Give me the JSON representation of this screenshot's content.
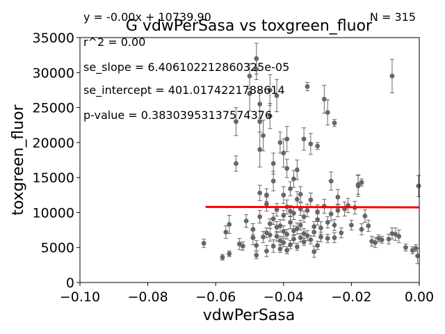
{
  "chart_data": {
    "type": "scatter",
    "title": "G vdwPerSasa vs toxgreen_fluor",
    "xlabel": "vdwPerSasa",
    "ylabel": "toxgreen_fluor",
    "xlim": [
      -0.1,
      0.0
    ],
    "ylim": [
      0,
      35000
    ],
    "xticks": [
      -0.1,
      -0.08,
      -0.06,
      -0.04,
      -0.02,
      0.0
    ],
    "xtick_labels": [
      "−0.10",
      "−0.08",
      "−0.06",
      "−0.04",
      "−0.02",
      "0.00"
    ],
    "yticks": [
      0,
      5000,
      10000,
      15000,
      20000,
      25000,
      30000,
      35000
    ],
    "ytick_labels": [
      "0",
      "5000",
      "10000",
      "15000",
      "20000",
      "25000",
      "30000",
      "35000"
    ],
    "grid": false,
    "annotations": {
      "equation": "y = -0.00x + 10739.90",
      "r2": "r^2 = 0.00",
      "se_slope": "se_slope = 6.406102212860325e-05",
      "se_intercept": "se_intercept = 401.0174221788614",
      "p_value": "p-value = 0.38303953137574376",
      "n": "N = 315"
    },
    "fit_line": {
      "x": [
        -0.063,
        0.0
      ],
      "y": [
        10800,
        10739.9
      ],
      "color": "#ff0000"
    },
    "point_color": "#666666",
    "points": [
      [
        -0.0635,
        5600,
        600
      ],
      [
        -0.058,
        3600,
        400
      ],
      [
        -0.057,
        7200,
        900
      ],
      [
        -0.056,
        4100,
        400
      ],
      [
        -0.056,
        8300,
        1300
      ],
      [
        -0.054,
        23000,
        2000
      ],
      [
        -0.054,
        17000,
        1100
      ],
      [
        -0.053,
        5500,
        800
      ],
      [
        -0.052,
        5200,
        600
      ],
      [
        -0.051,
        8800,
        900
      ],
      [
        -0.05,
        27000,
        2500
      ],
      [
        -0.05,
        29500,
        1800
      ],
      [
        -0.049,
        6400,
        1000
      ],
      [
        -0.049,
        7600,
        800
      ],
      [
        -0.048,
        3900,
        500
      ],
      [
        -0.048,
        5300,
        700
      ],
      [
        -0.048,
        32000,
        2200
      ],
      [
        -0.048,
        30500,
        1500
      ],
      [
        -0.047,
        25500,
        2000
      ],
      [
        -0.047,
        23000,
        1500
      ],
      [
        -0.047,
        19000,
        2500
      ],
      [
        -0.047,
        12800,
        1100
      ],
      [
        -0.047,
        9400,
        900
      ],
      [
        -0.046,
        6500,
        800
      ],
      [
        -0.046,
        21000,
        2200
      ],
      [
        -0.045,
        11200,
        1000
      ],
      [
        -0.045,
        12500,
        900
      ],
      [
        -0.045,
        7100,
        700
      ],
      [
        -0.045,
        4500,
        800
      ],
      [
        -0.044,
        6800,
        900
      ],
      [
        -0.044,
        8400,
        700
      ],
      [
        -0.044,
        27500,
        2200
      ],
      [
        -0.044,
        23800,
        1800
      ],
      [
        -0.043,
        14500,
        1400
      ],
      [
        -0.043,
        9100,
        800
      ],
      [
        -0.043,
        5200,
        900
      ],
      [
        -0.043,
        17000,
        1500
      ],
      [
        -0.042,
        6600,
        700
      ],
      [
        -0.042,
        7900,
        800
      ],
      [
        -0.042,
        10400,
        900
      ],
      [
        -0.042,
        26700,
        2300
      ],
      [
        -0.041,
        8100,
        900
      ],
      [
        -0.041,
        6000,
        600
      ],
      [
        -0.041,
        4800,
        500
      ],
      [
        -0.041,
        20000,
        1500
      ],
      [
        -0.04,
        18500,
        2000
      ],
      [
        -0.04,
        9600,
        700
      ],
      [
        -0.04,
        5700,
        600
      ],
      [
        -0.04,
        7300,
        800
      ],
      [
        -0.04,
        12500,
        1200
      ],
      [
        -0.039,
        10800,
        1000
      ],
      [
        -0.039,
        6900,
        700
      ],
      [
        -0.039,
        4600,
        500
      ],
      [
        -0.039,
        20500,
        1800
      ],
      [
        -0.039,
        16300,
        1300
      ],
      [
        -0.038,
        5400,
        600
      ],
      [
        -0.038,
        8600,
        900
      ],
      [
        -0.038,
        13400,
        1000
      ],
      [
        -0.038,
        10200,
        800
      ],
      [
        -0.037,
        7400,
        700
      ],
      [
        -0.037,
        6200,
        600
      ],
      [
        -0.037,
        14800,
        1200
      ],
      [
        -0.037,
        9900,
        900
      ],
      [
        -0.036,
        5100,
        500
      ],
      [
        -0.036,
        7700,
        800
      ],
      [
        -0.036,
        11900,
        1100
      ],
      [
        -0.036,
        16100,
        1400
      ],
      [
        -0.035,
        6400,
        600
      ],
      [
        -0.035,
        8200,
        700
      ],
      [
        -0.035,
        12600,
        1100
      ],
      [
        -0.035,
        10500,
        900
      ],
      [
        -0.034,
        7000,
        700
      ],
      [
        -0.034,
        5800,
        500
      ],
      [
        -0.034,
        20500,
        1600
      ],
      [
        -0.034,
        9400,
        800
      ],
      [
        -0.033,
        28000,
        600
      ],
      [
        -0.033,
        6700,
        700
      ],
      [
        -0.033,
        10300,
        900
      ],
      [
        -0.032,
        19800,
        1500
      ],
      [
        -0.032,
        11800,
        1000
      ],
      [
        -0.032,
        6100,
        600
      ],
      [
        -0.031,
        4400,
        800
      ],
      [
        -0.031,
        8000,
        700
      ],
      [
        -0.031,
        7200,
        600
      ],
      [
        -0.03,
        10100,
        1000
      ],
      [
        -0.03,
        5300,
        600
      ],
      [
        -0.03,
        19500,
        500
      ],
      [
        -0.03,
        9000,
        800
      ],
      [
        -0.029,
        7800,
        900
      ],
      [
        -0.029,
        6500,
        700
      ],
      [
        -0.028,
        10900,
        1000
      ],
      [
        -0.028,
        26200,
        2000
      ],
      [
        -0.027,
        24300,
        1800
      ],
      [
        -0.027,
        8600,
        800
      ],
      [
        -0.027,
        6300,
        600
      ],
      [
        -0.026,
        14500,
        1300
      ],
      [
        -0.026,
        9800,
        1000
      ],
      [
        -0.025,
        22800,
        500
      ],
      [
        -0.025,
        8200,
        800
      ],
      [
        -0.025,
        6400,
        700
      ],
      [
        -0.024,
        10300,
        900
      ],
      [
        -0.024,
        12200,
        1100
      ],
      [
        -0.023,
        7100,
        700
      ],
      [
        -0.022,
        10500,
        1000
      ],
      [
        -0.021,
        11000,
        1000
      ],
      [
        -0.02,
        8200,
        700
      ],
      [
        -0.019,
        10700,
        900
      ],
      [
        -0.018,
        13800,
        1500
      ],
      [
        -0.018,
        14000,
        1400
      ],
      [
        -0.017,
        7600,
        800
      ],
      [
        -0.017,
        14300,
        500
      ],
      [
        -0.016,
        9500,
        900
      ],
      [
        -0.015,
        8100,
        800
      ],
      [
        -0.014,
        5900,
        700
      ],
      [
        -0.013,
        5700,
        700
      ],
      [
        -0.012,
        6300,
        500
      ],
      [
        -0.011,
        6100,
        500
      ],
      [
        -0.009,
        6200,
        700
      ],
      [
        -0.008,
        7000,
        800
      ],
      [
        -0.008,
        29500,
        2400
      ],
      [
        -0.007,
        6900,
        900
      ],
      [
        -0.006,
        6600,
        900
      ],
      [
        -0.004,
        5000,
        500
      ],
      [
        -0.002,
        4600,
        500
      ],
      [
        -0.001,
        4900,
        500
      ],
      [
        -0.0005,
        3800,
        1100
      ],
      [
        -0.0002,
        13800,
        1500
      ]
    ]
  }
}
